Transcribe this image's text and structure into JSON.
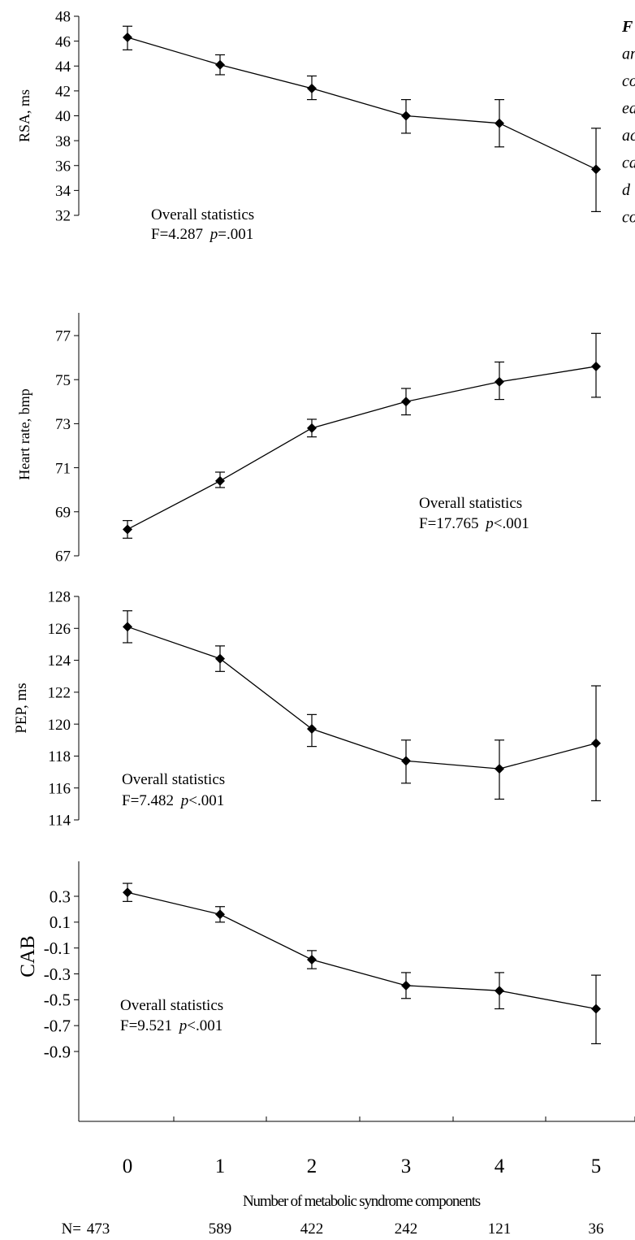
{
  "caption": {
    "lines": [
      {
        "text": "F",
        "bold": true
      },
      {
        "text": "an",
        "bold": false
      },
      {
        "text": "co",
        "bold": false
      },
      {
        "text": "ea",
        "bold": false
      },
      {
        "text": "ac",
        "bold": false
      },
      {
        "text": "ca",
        "bold": false
      },
      {
        "text": "d",
        "bold": false
      },
      {
        "text": "co",
        "bold": false
      }
    ]
  },
  "chart_data": [
    {
      "type": "line",
      "ylabel": "RSA, ms",
      "ylim": [
        32,
        48
      ],
      "yticks": [
        "48",
        "46",
        "44",
        "42",
        "40",
        "38",
        "36",
        "34",
        "32"
      ],
      "x": [
        0,
        1,
        2,
        3,
        4,
        5
      ],
      "values": [
        46.3,
        44.1,
        42.2,
        40.0,
        39.4,
        35.7
      ],
      "err_low": [
        45.3,
        43.3,
        41.3,
        38.6,
        37.5,
        32.3
      ],
      "err_high": [
        47.2,
        44.9,
        43.2,
        41.3,
        41.3,
        39.0
      ],
      "annotation": {
        "line1": "Overall statistics",
        "f": "F=4.287 ",
        "p": "p",
        "pv": "=.001"
      }
    },
    {
      "type": "line",
      "ylabel": "Heart rate, bmp",
      "ylim": [
        67,
        78
      ],
      "yticks": [
        "77",
        "75",
        "73",
        "71",
        "69",
        "67"
      ],
      "x": [
        0,
        1,
        2,
        3,
        4,
        5
      ],
      "values": [
        68.2,
        70.4,
        72.8,
        74.0,
        74.9,
        75.6
      ],
      "err_low": [
        67.8,
        70.1,
        72.4,
        73.4,
        74.1,
        74.2
      ],
      "err_high": [
        68.6,
        70.8,
        73.2,
        74.6,
        75.8,
        77.1
      ],
      "annotation": {
        "line1": "Overall statistics",
        "f": "F=17.765 ",
        "p": "p",
        "pv": "<.001"
      }
    },
    {
      "type": "line",
      "ylabel": "PEP, ms",
      "ylim": [
        114,
        128
      ],
      "yticks": [
        "128",
        "126",
        "124",
        "122",
        "120",
        "118",
        "116",
        "114"
      ],
      "x": [
        0,
        1,
        2,
        3,
        4,
        5
      ],
      "values": [
        126.1,
        124.1,
        119.7,
        117.7,
        117.2,
        118.8
      ],
      "err_low": [
        125.1,
        123.3,
        118.6,
        116.3,
        115.3,
        115.2
      ],
      "err_high": [
        127.1,
        124.9,
        120.6,
        119.0,
        119.0,
        122.4
      ],
      "annotation": {
        "line1": "Overall statistics",
        "f": "F=7.482 ",
        "p": "p",
        "pv": "<.001"
      }
    },
    {
      "type": "line",
      "ylabel": "CAB",
      "ylim": [
        -0.9,
        0.4
      ],
      "yticks": [
        "0.3",
        "0.1",
        "-0.1",
        "-0.3",
        "-0.5",
        "-0.7",
        "-0.9"
      ],
      "x": [
        0,
        1,
        2,
        3,
        4,
        5
      ],
      "values": [
        0.33,
        0.16,
        -0.19,
        -0.39,
        -0.43,
        -0.57
      ],
      "err_low": [
        0.26,
        0.1,
        -0.26,
        -0.49,
        -0.57,
        -0.84
      ],
      "err_high": [
        0.4,
        0.22,
        -0.12,
        -0.29,
        -0.29,
        -0.31
      ],
      "annotation": {
        "line1": "Overall statistics",
        "f": "F=9.521 ",
        "p": "p",
        "pv": "<.001"
      }
    }
  ],
  "x_axis": {
    "ticks": [
      "0",
      "1",
      "2",
      "3",
      "4",
      "5"
    ],
    "label": "Number of metabolic syndrome components",
    "n_prefix": "N=",
    "n_values": [
      "473",
      "589",
      "422",
      "242",
      "121",
      "36"
    ]
  }
}
